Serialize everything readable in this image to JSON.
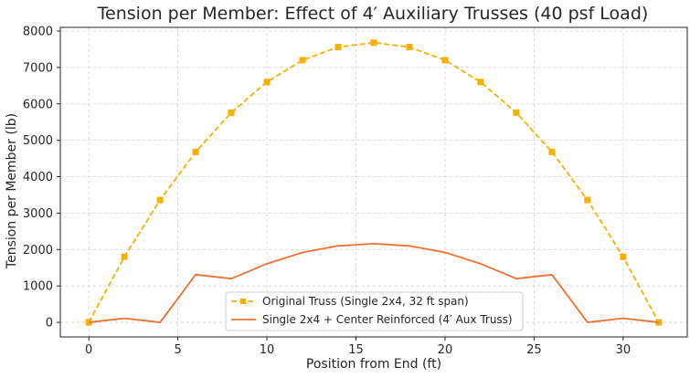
{
  "chart_data": {
    "type": "line",
    "title": "Tension per Member: Effect of 4′ Auxiliary Trusses (40 psf Load)",
    "xlabel": "Position from End (ft)",
    "ylabel": "Tension per Member (lb)",
    "xlim": [
      -1.6,
      33.6
    ],
    "ylim": [
      -400,
      8100
    ],
    "x_ticks": [
      0,
      5,
      10,
      15,
      20,
      25,
      30
    ],
    "y_ticks": [
      0,
      1000,
      2000,
      3000,
      4000,
      5000,
      6000,
      7000,
      8000
    ],
    "grid": true,
    "grid_style": "dashed",
    "legend_position": "bottom-center",
    "x": [
      0,
      2,
      4,
      6,
      8,
      10,
      12,
      14,
      16,
      18,
      20,
      22,
      24,
      26,
      28,
      30,
      32
    ],
    "series": [
      {
        "name": "Original Truss (Single 2x4, 32 ft span)",
        "color": "#f5b000",
        "line_style": "dashed",
        "marker": "square",
        "values": [
          0,
          1800,
          3360,
          4680,
          5760,
          6600,
          7200,
          7560,
          7680,
          7560,
          7200,
          6600,
          5760,
          4680,
          3360,
          1800,
          0
        ]
      },
      {
        "name": "Single 2x4 + Center Reinforced (4′ Aux Truss)",
        "color": "#f07030",
        "line_style": "solid",
        "marker": "none",
        "values": [
          0,
          110,
          0,
          1310,
          1200,
          1610,
          1920,
          2100,
          2160,
          2100,
          1920,
          1610,
          1200,
          1310,
          0,
          110,
          0
        ]
      }
    ]
  }
}
